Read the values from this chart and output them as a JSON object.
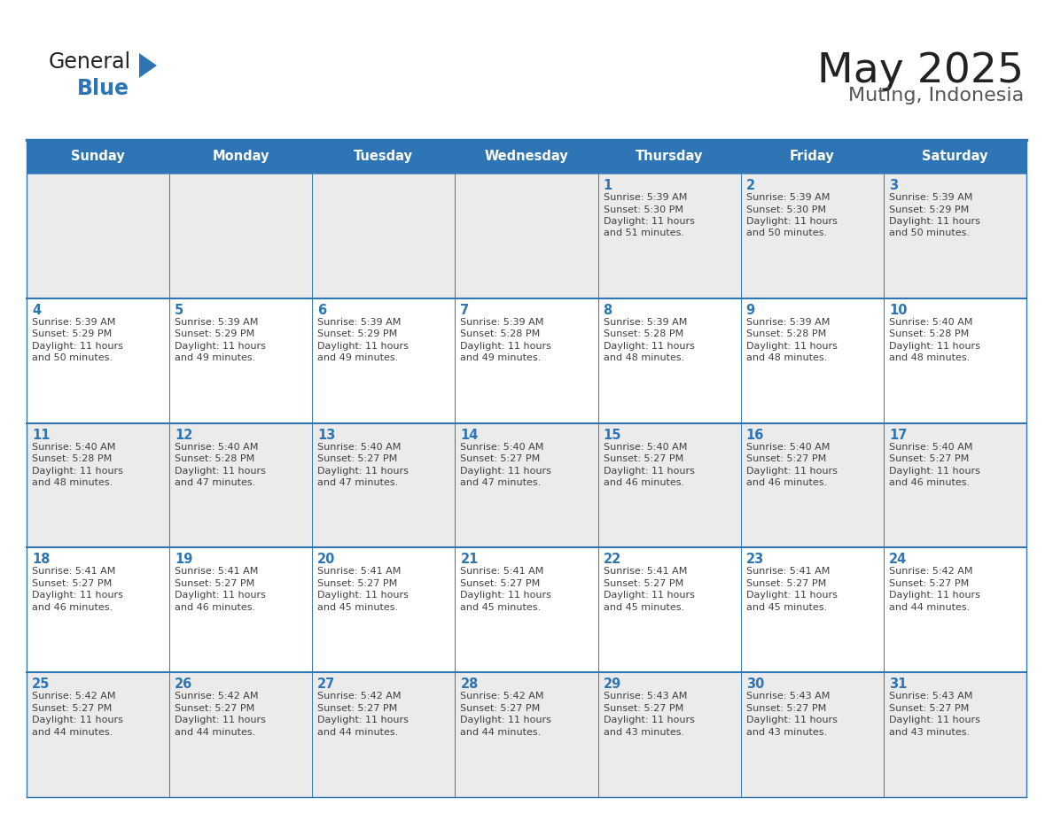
{
  "title": "May 2025",
  "subtitle": "Muting, Indonesia",
  "header_bg_color": "#2E75B6",
  "header_text_color": "#FFFFFF",
  "cell_bg_color": "#FFFFFF",
  "cell_alt_bg_color": "#EBEBEB",
  "grid_color": "#2E75B6",
  "day_number_color": "#2E75B6",
  "cell_text_color": "#404040",
  "background_color": "#FFFFFF",
  "days_of_week": [
    "Sunday",
    "Monday",
    "Tuesday",
    "Wednesday",
    "Thursday",
    "Friday",
    "Saturday"
  ],
  "calendar": [
    [
      {
        "day": "",
        "sunrise": "",
        "sunset": "",
        "daylight": ""
      },
      {
        "day": "",
        "sunrise": "",
        "sunset": "",
        "daylight": ""
      },
      {
        "day": "",
        "sunrise": "",
        "sunset": "",
        "daylight": ""
      },
      {
        "day": "",
        "sunrise": "",
        "sunset": "",
        "daylight": ""
      },
      {
        "day": "1",
        "sunrise": "5:39 AM",
        "sunset": "5:30 PM",
        "daylight": "11 hours and 51 minutes."
      },
      {
        "day": "2",
        "sunrise": "5:39 AM",
        "sunset": "5:30 PM",
        "daylight": "11 hours and 50 minutes."
      },
      {
        "day": "3",
        "sunrise": "5:39 AM",
        "sunset": "5:29 PM",
        "daylight": "11 hours and 50 minutes."
      }
    ],
    [
      {
        "day": "4",
        "sunrise": "5:39 AM",
        "sunset": "5:29 PM",
        "daylight": "11 hours and 50 minutes."
      },
      {
        "day": "5",
        "sunrise": "5:39 AM",
        "sunset": "5:29 PM",
        "daylight": "11 hours and 49 minutes."
      },
      {
        "day": "6",
        "sunrise": "5:39 AM",
        "sunset": "5:29 PM",
        "daylight": "11 hours and 49 minutes."
      },
      {
        "day": "7",
        "sunrise": "5:39 AM",
        "sunset": "5:28 PM",
        "daylight": "11 hours and 49 minutes."
      },
      {
        "day": "8",
        "sunrise": "5:39 AM",
        "sunset": "5:28 PM",
        "daylight": "11 hours and 48 minutes."
      },
      {
        "day": "9",
        "sunrise": "5:39 AM",
        "sunset": "5:28 PM",
        "daylight": "11 hours and 48 minutes."
      },
      {
        "day": "10",
        "sunrise": "5:40 AM",
        "sunset": "5:28 PM",
        "daylight": "11 hours and 48 minutes."
      }
    ],
    [
      {
        "day": "11",
        "sunrise": "5:40 AM",
        "sunset": "5:28 PM",
        "daylight": "11 hours and 48 minutes."
      },
      {
        "day": "12",
        "sunrise": "5:40 AM",
        "sunset": "5:28 PM",
        "daylight": "11 hours and 47 minutes."
      },
      {
        "day": "13",
        "sunrise": "5:40 AM",
        "sunset": "5:27 PM",
        "daylight": "11 hours and 47 minutes."
      },
      {
        "day": "14",
        "sunrise": "5:40 AM",
        "sunset": "5:27 PM",
        "daylight": "11 hours and 47 minutes."
      },
      {
        "day": "15",
        "sunrise": "5:40 AM",
        "sunset": "5:27 PM",
        "daylight": "11 hours and 46 minutes."
      },
      {
        "day": "16",
        "sunrise": "5:40 AM",
        "sunset": "5:27 PM",
        "daylight": "11 hours and 46 minutes."
      },
      {
        "day": "17",
        "sunrise": "5:40 AM",
        "sunset": "5:27 PM",
        "daylight": "11 hours and 46 minutes."
      }
    ],
    [
      {
        "day": "18",
        "sunrise": "5:41 AM",
        "sunset": "5:27 PM",
        "daylight": "11 hours and 46 minutes."
      },
      {
        "day": "19",
        "sunrise": "5:41 AM",
        "sunset": "5:27 PM",
        "daylight": "11 hours and 46 minutes."
      },
      {
        "day": "20",
        "sunrise": "5:41 AM",
        "sunset": "5:27 PM",
        "daylight": "11 hours and 45 minutes."
      },
      {
        "day": "21",
        "sunrise": "5:41 AM",
        "sunset": "5:27 PM",
        "daylight": "11 hours and 45 minutes."
      },
      {
        "day": "22",
        "sunrise": "5:41 AM",
        "sunset": "5:27 PM",
        "daylight": "11 hours and 45 minutes."
      },
      {
        "day": "23",
        "sunrise": "5:41 AM",
        "sunset": "5:27 PM",
        "daylight": "11 hours and 45 minutes."
      },
      {
        "day": "24",
        "sunrise": "5:42 AM",
        "sunset": "5:27 PM",
        "daylight": "11 hours and 44 minutes."
      }
    ],
    [
      {
        "day": "25",
        "sunrise": "5:42 AM",
        "sunset": "5:27 PM",
        "daylight": "11 hours and 44 minutes."
      },
      {
        "day": "26",
        "sunrise": "5:42 AM",
        "sunset": "5:27 PM",
        "daylight": "11 hours and 44 minutes."
      },
      {
        "day": "27",
        "sunrise": "5:42 AM",
        "sunset": "5:27 PM",
        "daylight": "11 hours and 44 minutes."
      },
      {
        "day": "28",
        "sunrise": "5:42 AM",
        "sunset": "5:27 PM",
        "daylight": "11 hours and 44 minutes."
      },
      {
        "day": "29",
        "sunrise": "5:43 AM",
        "sunset": "5:27 PM",
        "daylight": "11 hours and 43 minutes."
      },
      {
        "day": "30",
        "sunrise": "5:43 AM",
        "sunset": "5:27 PM",
        "daylight": "11 hours and 43 minutes."
      },
      {
        "day": "31",
        "sunrise": "5:43 AM",
        "sunset": "5:27 PM",
        "daylight": "11 hours and 43 minutes."
      }
    ]
  ],
  "logo_text_general": "General",
  "logo_text_blue": "Blue",
  "logo_triangle_color": "#2E75B6",
  "logo_general_color": "#222222",
  "title_color": "#222222",
  "subtitle_color": "#555555"
}
